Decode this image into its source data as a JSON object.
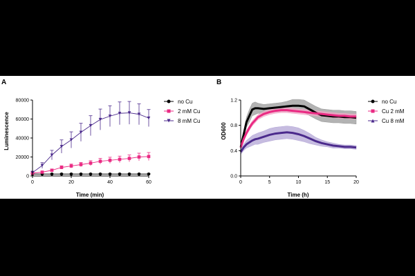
{
  "chart_data": [
    {
      "panel_label": "A",
      "type": "line",
      "xlabel": "Time (min)",
      "ylabel": "Luminescence",
      "xlim": [
        0,
        60
      ],
      "ylim": [
        0,
        80000
      ],
      "xticks": [
        0,
        20,
        40,
        60
      ],
      "yticks": [
        0,
        20000,
        40000,
        60000,
        80000
      ],
      "ytick_labels": [
        "0",
        "20000",
        "40000",
        "60000",
        "80000"
      ],
      "legend_position": "right",
      "x": [
        0,
        5,
        10,
        15,
        20,
        25,
        30,
        35,
        40,
        45,
        50,
        55,
        60
      ],
      "series": [
        {
          "name": "no Cu",
          "marker": "circle",
          "color": "#000000",
          "values": [
            2000,
            2000,
            2000,
            2000,
            2000,
            2000,
            2000,
            2000,
            2000,
            2000,
            2000,
            2000,
            2000
          ],
          "errors": [
            300,
            300,
            300,
            300,
            300,
            300,
            300,
            300,
            300,
            300,
            300,
            300,
            300
          ]
        },
        {
          "name": "2 mM Cu",
          "marker": "square",
          "color": "#ea2a83",
          "values": [
            3000,
            4000,
            6000,
            9000,
            10500,
            12000,
            13500,
            15500,
            16500,
            17500,
            18500,
            20000,
            20500
          ],
          "errors": [
            800,
            1000,
            1300,
            1700,
            2000,
            2200,
            2600,
            3000,
            3200,
            3400,
            3600,
            4000,
            4200
          ]
        },
        {
          "name": "8 mM Cu",
          "marker": "triangle-down",
          "color": "#4b2a8c",
          "values": [
            3500,
            11000,
            22000,
            31000,
            38000,
            46000,
            53000,
            59500,
            63000,
            66000,
            66500,
            65000,
            61000
          ],
          "errors": [
            1500,
            3000,
            5000,
            7000,
            8500,
            9500,
            10500,
            11000,
            11000,
            12000,
            12000,
            11000,
            9000
          ]
        }
      ]
    },
    {
      "panel_label": "B",
      "type": "line",
      "xlabel": "Time (h)",
      "ylabel": "OD600",
      "xlim": [
        0,
        20
      ],
      "ylim": [
        0.0,
        1.2
      ],
      "xticks": [
        0,
        5,
        10,
        15,
        20
      ],
      "yticks": [
        0,
        0.4,
        0.8,
        1.2
      ],
      "ytick_labels": [
        "0.0",
        "0.4",
        "0.8",
        "1.2"
      ],
      "legend_position": "right",
      "x": [
        0,
        0.5,
        1,
        1.5,
        2,
        2.5,
        3,
        4,
        5,
        6,
        7,
        8,
        9,
        10,
        11,
        12,
        13,
        14,
        15,
        16,
        17,
        18,
        19,
        20
      ],
      "series": [
        {
          "name": "no Cu",
          "marker": "circle",
          "color": "#000000",
          "band_color": "#999999",
          "values": [
            0.45,
            0.65,
            0.85,
            0.95,
            1.05,
            1.07,
            1.07,
            1.06,
            1.07,
            1.08,
            1.09,
            1.1,
            1.11,
            1.11,
            1.1,
            1.05,
            1.0,
            0.96,
            0.95,
            0.94,
            0.94,
            0.93,
            0.93,
            0.92
          ],
          "band": [
            0.05,
            0.06,
            0.08,
            0.1,
            0.1,
            0.1,
            0.08,
            0.07,
            0.07,
            0.07,
            0.07,
            0.08,
            0.1,
            0.1,
            0.1,
            0.1,
            0.1,
            0.1,
            0.1,
            0.1,
            0.1,
            0.1,
            0.1,
            0.1
          ]
        },
        {
          "name": "Cu 2 mM",
          "marker": "square",
          "color": "#ea2a83",
          "band_color": "#f2a6c6",
          "values": [
            0.45,
            0.58,
            0.68,
            0.76,
            0.83,
            0.88,
            0.93,
            0.98,
            1.01,
            1.03,
            1.04,
            1.04,
            1.03,
            1.02,
            1.01,
            1.0,
            0.99,
            0.98,
            0.97,
            0.96,
            0.95,
            0.95,
            0.94,
            0.94
          ],
          "band": [
            0.03,
            0.03,
            0.04,
            0.04,
            0.04,
            0.04,
            0.04,
            0.04,
            0.04,
            0.04,
            0.04,
            0.04,
            0.04,
            0.04,
            0.04,
            0.04,
            0.04,
            0.04,
            0.04,
            0.04,
            0.04,
            0.04,
            0.04,
            0.04
          ]
        },
        {
          "name": "Cu 8 mM",
          "marker": "triangle-up",
          "color": "#4b2a8c",
          "band_color": "#b3a6d6",
          "values": [
            0.38,
            0.45,
            0.5,
            0.53,
            0.56,
            0.58,
            0.59,
            0.62,
            0.65,
            0.67,
            0.68,
            0.69,
            0.68,
            0.66,
            0.63,
            0.59,
            0.55,
            0.52,
            0.5,
            0.48,
            0.47,
            0.46,
            0.46,
            0.45
          ],
          "band": [
            0.04,
            0.05,
            0.06,
            0.07,
            0.08,
            0.08,
            0.09,
            0.09,
            0.1,
            0.1,
            0.1,
            0.1,
            0.1,
            0.1,
            0.09,
            0.08,
            0.06,
            0.05,
            0.04,
            0.04,
            0.03,
            0.03,
            0.03,
            0.03
          ]
        }
      ]
    }
  ]
}
